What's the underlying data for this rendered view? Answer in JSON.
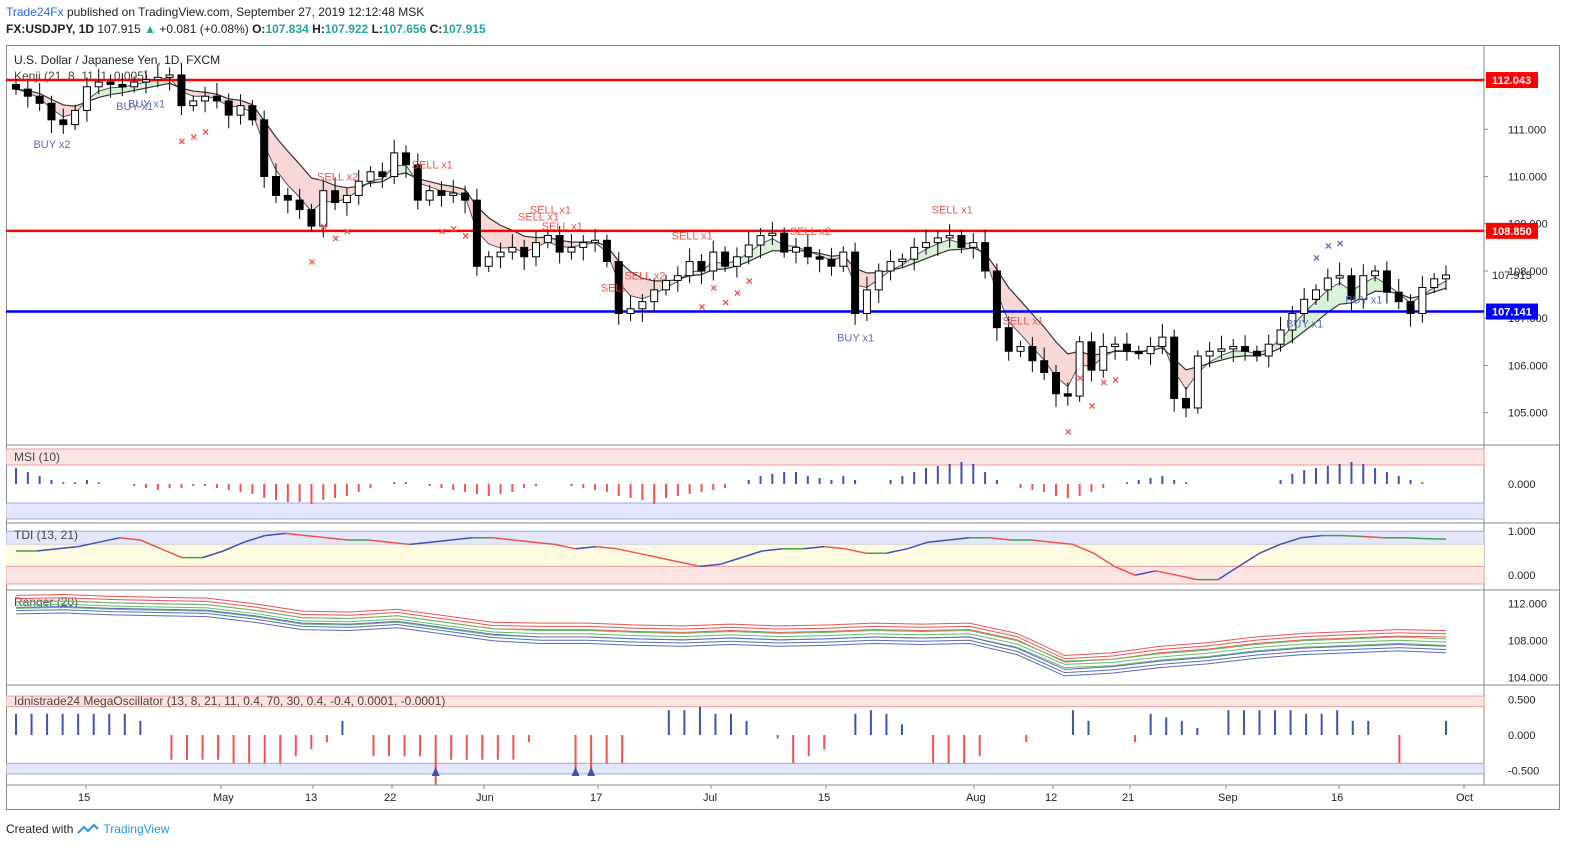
{
  "header": {
    "author": "Trade24Fx",
    "published_text": "published on TradingView.com, September 27, 2019 12:12:48 MSK",
    "symbol": "FX:USDJPY, 1D",
    "last": "107.915",
    "change": "+0.081 (+0.08%)",
    "o_label": "O:",
    "o": "107.834",
    "h_label": "H:",
    "h": "107.922",
    "l_label": "L:",
    "l": "107.656",
    "c_label": "C:",
    "c": "107.915"
  },
  "chart_title": "U.S. Dollar / Japanese Yen, 1D, FXCM",
  "kenji_label": "Kenji (21, 8, 11, 1, 0.005)",
  "footer": {
    "created_with": "Created with",
    "brand": "TradingView"
  },
  "colors": {
    "up_candle": "#ffffff",
    "down_candle": "#000000",
    "red_line": "#ff0000",
    "blue_line": "#0000ff",
    "sell": "#ef5350",
    "buy": "#5c6bc0",
    "cloud_red": "#f8d7d7",
    "cloud_green": "#d9f2d9",
    "cloud_blue": "#d6d9f5"
  },
  "chart_data": [
    {
      "type": "candlestick",
      "title": "U.S. Dollar / Japanese Yen, 1D, FXCM",
      "ylim": [
        104.4,
        112.7
      ],
      "yticks": [
        "111.000",
        "110.000",
        "109.000",
        "108.000",
        "107.000",
        "106.000",
        "105.000"
      ],
      "xticks": [
        "15",
        "May",
        "13",
        "22",
        "Jun",
        "17",
        "Jul",
        "15",
        "Aug",
        "12",
        "21",
        "Sep",
        "16",
        "Oct"
      ],
      "hlines": [
        {
          "value": 112.043,
          "label": "112.043",
          "color": "#ff0000"
        },
        {
          "value": 108.85,
          "label": "108.850",
          "color": "#ff0000"
        },
        {
          "value": 107.141,
          "label": "107.141",
          "color": "#0000ff"
        }
      ],
      "last_price_label": "107.915",
      "closes": [
        111.85,
        111.7,
        111.55,
        111.2,
        111.1,
        111.4,
        111.9,
        112.0,
        111.95,
        111.9,
        112.0,
        112.05,
        112.1,
        112.15,
        111.5,
        111.6,
        111.7,
        111.6,
        111.3,
        111.5,
        111.2,
        110.0,
        109.6,
        109.5,
        109.3,
        108.95,
        109.7,
        109.45,
        109.6,
        109.9,
        110.1,
        110.0,
        110.5,
        110.25,
        109.5,
        109.7,
        109.6,
        109.65,
        109.5,
        108.1,
        108.3,
        108.4,
        108.5,
        108.3,
        108.6,
        108.75,
        108.4,
        108.5,
        108.6,
        108.65,
        108.2,
        107.1,
        107.2,
        107.35,
        107.6,
        107.8,
        107.9,
        108.2,
        108.0,
        108.4,
        108.1,
        108.3,
        108.55,
        108.75,
        108.8,
        108.4,
        108.5,
        108.3,
        108.25,
        108.1,
        108.4,
        107.1,
        107.6,
        108.0,
        108.2,
        108.25,
        108.5,
        108.6,
        108.7,
        108.75,
        108.5,
        108.6,
        108.0,
        106.8,
        106.3,
        106.4,
        106.1,
        105.85,
        105.4,
        105.35,
        106.5,
        105.9,
        106.4,
        106.45,
        106.3,
        106.25,
        106.4,
        106.6,
        105.3,
        105.1,
        106.2,
        106.3,
        106.35,
        106.4,
        106.3,
        106.2,
        106.45,
        106.75,
        107.1,
        107.4,
        107.6,
        107.85,
        107.9,
        107.4,
        107.9,
        108.0,
        107.55,
        107.35,
        107.1,
        107.65,
        107.834,
        107.915
      ],
      "bands_note": "shaded Kenji cloud alternating red (downtrend) / green (uptrend) / blue",
      "signals": [
        {
          "label": "BUY x2",
          "side": "buy"
        },
        {
          "label": "BUY x1",
          "side": "buy"
        },
        {
          "label": "BUY x1",
          "side": "buy"
        },
        {
          "label": "SELL x2",
          "side": "sell"
        },
        {
          "label": "SELL x1",
          "side": "sell"
        },
        {
          "label": "SELL x1",
          "side": "sell"
        },
        {
          "label": "SELL x1",
          "side": "sell"
        },
        {
          "label": "SELL x1",
          "side": "sell"
        },
        {
          "label": "SELL x2",
          "side": "sell"
        },
        {
          "label": "SELL x1",
          "side": "sell"
        },
        {
          "label": "SELL x2",
          "side": "sell"
        },
        {
          "label": "SELL",
          "side": "sell"
        },
        {
          "label": "BUY x1",
          "side": "buy"
        },
        {
          "label": "SELL x1",
          "side": "sell"
        },
        {
          "label": "SELL x1",
          "side": "sell"
        },
        {
          "label": "BUY x1",
          "side": "buy"
        },
        {
          "label": "BUY x1",
          "side": "buy"
        }
      ]
    },
    {
      "type": "bar",
      "title": "MSI (10)",
      "yticks": [
        "0.000"
      ],
      "values": [
        0.4,
        0.3,
        0.2,
        0.1,
        0.05,
        0.05,
        0.1,
        0.05,
        0.0,
        0.0,
        -0.05,
        -0.1,
        -0.15,
        -0.1,
        -0.1,
        -0.05,
        -0.05,
        -0.1,
        -0.15,
        -0.2,
        -0.25,
        -0.35,
        -0.4,
        -0.45,
        -0.45,
        -0.5,
        -0.4,
        -0.35,
        -0.3,
        -0.2,
        -0.1,
        0.0,
        0.05,
        0.05,
        0.0,
        -0.05,
        -0.1,
        -0.15,
        -0.2,
        -0.25,
        -0.3,
        -0.25,
        -0.2,
        -0.1,
        -0.05,
        0.0,
        0.0,
        -0.05,
        -0.1,
        -0.15,
        -0.2,
        -0.3,
        -0.35,
        -0.4,
        -0.5,
        -0.35,
        -0.3,
        -0.25,
        -0.2,
        -0.15,
        -0.1,
        0.0,
        0.1,
        0.2,
        0.25,
        0.3,
        0.3,
        0.2,
        0.15,
        0.1,
        0.2,
        0.1,
        0.0,
        0.0,
        0.1,
        0.2,
        0.3,
        0.4,
        0.45,
        0.5,
        0.55,
        0.5,
        0.3,
        0.1,
        0.0,
        -0.1,
        -0.15,
        -0.2,
        -0.3,
        -0.35,
        -0.3,
        -0.2,
        -0.1,
        0.0,
        0.05,
        0.1,
        0.15,
        0.2,
        0.1,
        0.05,
        0.0,
        0.0,
        0.0,
        0.0,
        0.0,
        0.0,
        0.0,
        0.1,
        0.25,
        0.35,
        0.4,
        0.45,
        0.5,
        0.55,
        0.5,
        0.4,
        0.3,
        0.2,
        0.1,
        0.05,
        0.0,
        0.0
      ]
    },
    {
      "type": "line",
      "title": "TDI (13, 21)",
      "yticks": [
        "1.000",
        "0.000"
      ],
      "values": [
        0.55,
        0.55,
        0.6,
        0.65,
        0.75,
        0.85,
        0.8,
        0.6,
        0.4,
        0.4,
        0.55,
        0.75,
        0.9,
        0.95,
        0.9,
        0.85,
        0.8,
        0.8,
        0.75,
        0.7,
        0.75,
        0.8,
        0.85,
        0.85,
        0.8,
        0.75,
        0.7,
        0.6,
        0.65,
        0.6,
        0.5,
        0.4,
        0.3,
        0.2,
        0.25,
        0.4,
        0.55,
        0.6,
        0.6,
        0.65,
        0.6,
        0.5,
        0.5,
        0.6,
        0.75,
        0.8,
        0.85,
        0.85,
        0.8,
        0.8,
        0.75,
        0.7,
        0.5,
        0.2,
        0.0,
        0.1,
        0.0,
        -0.1,
        -0.1,
        0.2,
        0.5,
        0.7,
        0.85,
        0.9,
        0.9,
        0.88,
        0.85,
        0.85,
        0.83,
        0.82
      ]
    },
    {
      "type": "line",
      "title": "Ranger (20)",
      "yticks": [
        "112.000",
        "108.000",
        "104.000"
      ],
      "ylim": [
        103.6,
        113.0
      ],
      "series": [
        {
          "color": "#ef5350",
          "values": [
            112.5,
            112.6,
            112.4,
            112.3,
            112.2,
            111.6,
            110.8,
            110.7,
            111.0,
            110.3,
            109.6,
            109.5,
            109.5,
            109.3,
            109.2,
            109.4,
            109.2,
            109.3,
            109.5,
            109.4,
            109.5,
            108.4,
            106.0,
            106.3,
            107.0,
            107.4,
            108.0,
            108.4,
            108.6,
            108.8,
            108.7
          ]
        },
        {
          "color": "#66bb6a",
          "values": [
            111.8,
            111.9,
            111.7,
            111.6,
            111.5,
            110.9,
            110.1,
            110.0,
            110.3,
            109.6,
            108.9,
            108.7,
            108.7,
            108.5,
            108.4,
            108.6,
            108.4,
            108.5,
            108.7,
            108.6,
            108.7,
            107.6,
            105.4,
            105.6,
            106.2,
            106.6,
            107.2,
            107.6,
            107.8,
            108.0,
            107.8
          ]
        },
        {
          "color": "#5c6bc0",
          "values": [
            111.2,
            111.3,
            111.1,
            111.0,
            110.9,
            110.3,
            109.5,
            109.4,
            109.7,
            109.0,
            108.3,
            108.0,
            108.0,
            107.8,
            107.7,
            107.9,
            107.7,
            107.8,
            108.0,
            107.9,
            108.0,
            106.8,
            104.5,
            104.8,
            105.4,
            105.8,
            106.4,
            106.8,
            107.0,
            107.2,
            107.0
          ]
        }
      ]
    },
    {
      "type": "bar",
      "title": "Idnistrade24 MegaOscillator (13, 8, 21, 11, 0.4, 70, 30, 0.4, -0.4, 0.0001, -0.0001)",
      "yticks": [
        "0.500",
        "0.000",
        "-0.500"
      ],
      "ylim": [
        -0.65,
        0.65
      ],
      "values": [
        0.3,
        0.3,
        0.3,
        0.3,
        0.3,
        0.3,
        0.3,
        0.3,
        0.2,
        0.0,
        -0.35,
        -0.35,
        -0.35,
        -0.35,
        -0.4,
        -0.4,
        -0.4,
        -0.4,
        -0.3,
        -0.2,
        -0.1,
        0.2,
        0.0,
        -0.3,
        -0.3,
        -0.3,
        -0.3,
        -0.7,
        -0.35,
        -0.35,
        -0.35,
        -0.35,
        -0.35,
        -0.1,
        0.0,
        0.0,
        -0.55,
        -0.5,
        -0.4,
        -0.4,
        0.0,
        0.0,
        0.35,
        0.35,
        0.4,
        0.3,
        0.3,
        0.2,
        0.0,
        -0.05,
        -0.4,
        -0.3,
        -0.2,
        0.0,
        0.3,
        0.35,
        0.3,
        0.15,
        0.0,
        -0.4,
        -0.4,
        -0.4,
        -0.3,
        0.0,
        0.0,
        -0.1,
        0.0,
        0.0,
        0.35,
        0.2,
        0.0,
        0.0,
        -0.1,
        0.3,
        0.25,
        0.2,
        0.1,
        0.0,
        0.35,
        0.35,
        0.35,
        0.35,
        0.35,
        0.3,
        0.3,
        0.35,
        0.2,
        0.2,
        0.0,
        -0.4,
        0.0,
        0.0,
        0.2
      ]
    },
    {
      "type": "axis",
      "xticks": [
        "15",
        "May",
        "13",
        "22",
        "Jun",
        "17",
        "Jul",
        "15",
        "Aug",
        "12",
        "21",
        "Sep",
        "16",
        "Oct"
      ]
    }
  ]
}
